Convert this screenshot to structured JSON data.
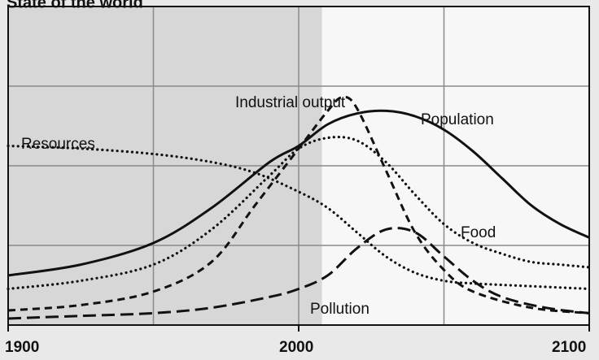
{
  "chart_data": {
    "type": "line",
    "title": "State of the world",
    "x_ticks": [
      1900,
      2000,
      2100
    ],
    "xlim": [
      1900,
      2100
    ],
    "ylim": [
      0,
      1
    ],
    "grid": true,
    "shaded_region": [
      1900,
      2008
    ],
    "series": [
      {
        "name": "Population",
        "style": "solid",
        "points": [
          [
            1900,
            0.16
          ],
          [
            1925,
            0.2
          ],
          [
            1950,
            0.28
          ],
          [
            1970,
            0.41
          ],
          [
            1990,
            0.58
          ],
          [
            2000,
            0.64
          ],
          [
            2010,
            0.72
          ],
          [
            2020,
            0.76
          ],
          [
            2030,
            0.77
          ],
          [
            2040,
            0.75
          ],
          [
            2050,
            0.7
          ],
          [
            2060,
            0.62
          ],
          [
            2070,
            0.52
          ],
          [
            2080,
            0.42
          ],
          [
            2090,
            0.35
          ],
          [
            2100,
            0.3
          ]
        ]
      },
      {
        "name": "Industrial output",
        "style": "dashed",
        "points": [
          [
            1900,
            0.03
          ],
          [
            1925,
            0.05
          ],
          [
            1950,
            0.1
          ],
          [
            1970,
            0.21
          ],
          [
            1985,
            0.42
          ],
          [
            2000,
            0.63
          ],
          [
            2010,
            0.77
          ],
          [
            2015,
            0.82
          ],
          [
            2020,
            0.78
          ],
          [
            2030,
            0.55
          ],
          [
            2040,
            0.32
          ],
          [
            2050,
            0.18
          ],
          [
            2060,
            0.1
          ],
          [
            2080,
            0.04
          ],
          [
            2100,
            0.02
          ]
        ]
      },
      {
        "name": "Food",
        "style": "dotted",
        "points": [
          [
            1900,
            0.11
          ],
          [
            1925,
            0.14
          ],
          [
            1950,
            0.2
          ],
          [
            1970,
            0.33
          ],
          [
            1990,
            0.53
          ],
          [
            2000,
            0.63
          ],
          [
            2010,
            0.67
          ],
          [
            2020,
            0.66
          ],
          [
            2030,
            0.58
          ],
          [
            2040,
            0.46
          ],
          [
            2050,
            0.35
          ],
          [
            2060,
            0.28
          ],
          [
            2070,
            0.24
          ],
          [
            2080,
            0.21
          ],
          [
            2090,
            0.2
          ],
          [
            2100,
            0.19
          ]
        ]
      },
      {
        "name": "Resources",
        "style": "dotted",
        "points": [
          [
            1900,
            0.64
          ],
          [
            1925,
            0.63
          ],
          [
            1950,
            0.61
          ],
          [
            1970,
            0.58
          ],
          [
            1985,
            0.54
          ],
          [
            2000,
            0.47
          ],
          [
            2010,
            0.41
          ],
          [
            2020,
            0.32
          ],
          [
            2030,
            0.23
          ],
          [
            2040,
            0.17
          ],
          [
            2050,
            0.14
          ],
          [
            2060,
            0.13
          ],
          [
            2080,
            0.12
          ],
          [
            2100,
            0.11
          ]
        ]
      },
      {
        "name": "Pollution",
        "style": "long-dashed",
        "points": [
          [
            1900,
            0.0
          ],
          [
            1925,
            0.01
          ],
          [
            1950,
            0.02
          ],
          [
            1970,
            0.04
          ],
          [
            1990,
            0.08
          ],
          [
            2000,
            0.11
          ],
          [
            2010,
            0.16
          ],
          [
            2020,
            0.26
          ],
          [
            2030,
            0.33
          ],
          [
            2040,
            0.32
          ],
          [
            2050,
            0.23
          ],
          [
            2060,
            0.14
          ],
          [
            2070,
            0.08
          ],
          [
            2085,
            0.04
          ],
          [
            2100,
            0.02
          ]
        ]
      }
    ]
  }
}
